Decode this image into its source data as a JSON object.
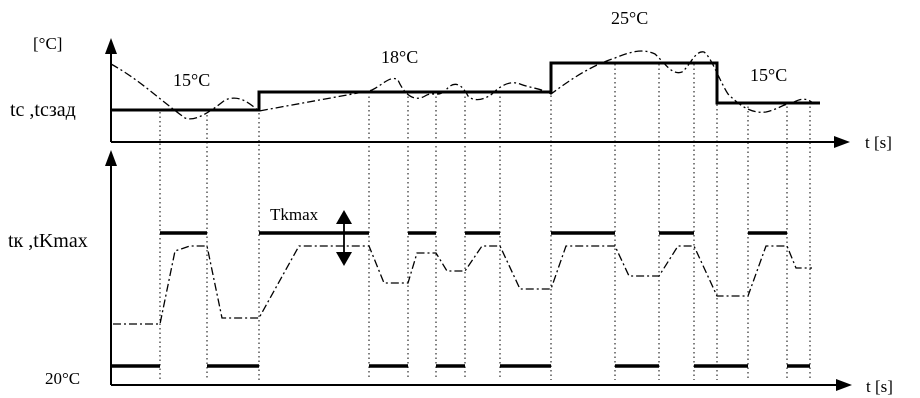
{
  "labels": {
    "unit_top": "[°C]",
    "y_top": "tc ,tcзад",
    "y_bottom": "tк ,tKmax",
    "x_axis_top": "t [s]",
    "x_axis_bottom": "t [s]",
    "tkmax": "Tkmax",
    "temp_low": "20°C"
  },
  "setpoints": [
    {
      "label": "15°C"
    },
    {
      "label": "18°C"
    },
    {
      "label": "25°C"
    },
    {
      "label": "15°C"
    }
  ],
  "colors": {
    "ink": "#000000",
    "background": "#ffffff"
  }
}
